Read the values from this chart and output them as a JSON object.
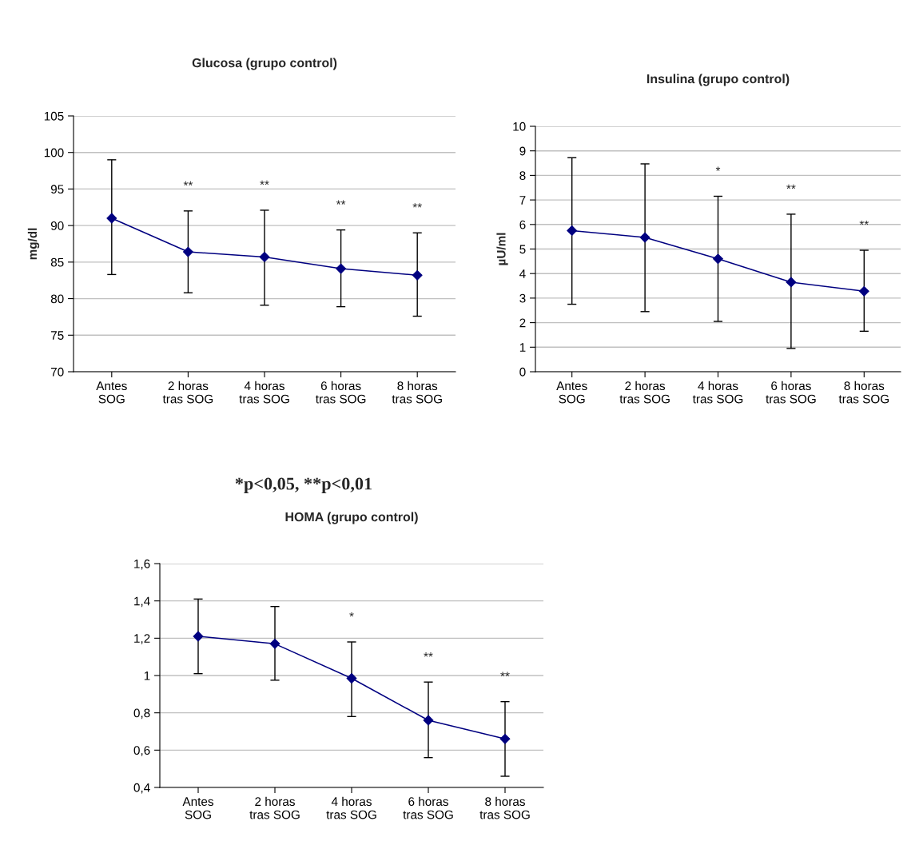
{
  "chart_data": [
    {
      "type": "line",
      "title": "Glucosa (grupo control)",
      "ylabel": "mg/dl",
      "categories": [
        "Antes\nSOG",
        "2 horas\ntras SOG",
        "4 horas\ntras SOG",
        "6 horas\ntras SOG",
        "8 horas\ntras SOG"
      ],
      "series": [
        {
          "color": "#000080",
          "values": [
            91.0,
            86.4,
            85.7,
            84.1,
            83.2
          ],
          "errors": [
            [
              83.3,
              99.0
            ],
            [
              80.8,
              92.0
            ],
            [
              79.1,
              92.1
            ],
            [
              78.9,
              89.4
            ],
            [
              77.6,
              89.0
            ]
          ]
        }
      ],
      "ylim": [
        70,
        105
      ],
      "yticks": [
        70,
        75,
        80,
        85,
        90,
        95,
        100,
        105
      ],
      "grid": "y",
      "marker": "diamond",
      "line_style": "solid",
      "annotations": [
        "**",
        "**",
        "**",
        "**",
        "*p<0,05, **p<0,01"
      ]
    },
    {
      "type": "line",
      "title": "Insulina (grupo control)",
      "ylabel": "µU/ml",
      "categories": [
        "Antes\nSOG",
        "2 horas\ntras SOG",
        "4 horas\ntras SOG",
        "6 horas\ntras SOG",
        "8 horas\ntras SOG"
      ],
      "series": [
        {
          "color": "#000080",
          "values": [
            5.75,
            5.47,
            4.6,
            3.65,
            3.28
          ],
          "errors": [
            [
              2.75,
              8.72
            ],
            [
              2.45,
              8.47
            ],
            [
              2.05,
              7.15
            ],
            [
              0.95,
              6.42
            ],
            [
              1.65,
              4.95
            ]
          ]
        }
      ],
      "ylim": [
        0,
        10
      ],
      "yticks": [
        0,
        1,
        2,
        3,
        4,
        5,
        6,
        7,
        8,
        9,
        10
      ],
      "grid": "y",
      "marker": "diamond",
      "line_style": "solid",
      "annotations": [
        "*",
        "**",
        "**"
      ]
    },
    {
      "type": "line",
      "title": "HOMA (grupo control)",
      "categories": [
        "Antes\nSOG",
        "2 horas\ntras SOG",
        "4 horas\ntras SOG",
        "6 horas\ntras SOG",
        "8 horas\ntras SOG"
      ],
      "series": [
        {
          "color": "#000080",
          "values": [
            1.21,
            1.17,
            0.985,
            0.76,
            0.66
          ],
          "errors": [
            [
              1.01,
              1.41
            ],
            [
              0.975,
              1.37
            ],
            [
              0.78,
              1.18
            ],
            [
              0.56,
              0.965
            ],
            [
              0.46,
              0.86
            ]
          ]
        }
      ],
      "ylim": [
        0.4,
        1.6
      ],
      "yticks": [
        {
          "value": 0.4,
          "label": "0,4"
        },
        {
          "value": 0.6,
          "label": "0,6"
        },
        {
          "value": 0.8,
          "label": "0,8"
        },
        1,
        {
          "value": 1.2,
          "label": "1,2"
        },
        {
          "value": 1.4,
          "label": "1,4"
        },
        {
          "value": 1.6,
          "label": "1,6"
        }
      ],
      "grid": "y",
      "marker": "diamond",
      "line_style": "solid",
      "annotations": [
        "*",
        "**",
        "**"
      ]
    }
  ]
}
